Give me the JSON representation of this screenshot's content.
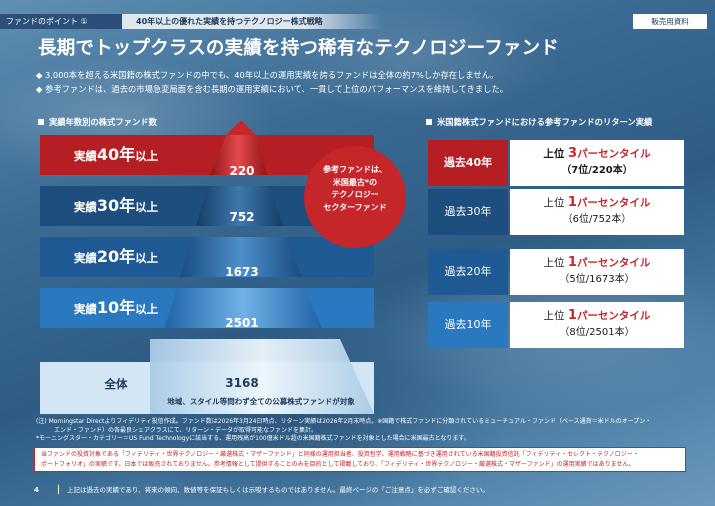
{
  "header": {
    "tag": "ファンドのポイント ①",
    "strategy": "40年以上の優れた実績を持つテクノロジー株式戦略",
    "badge": "販売用資料"
  },
  "title": "長期でトップクラスの実績を持つ稀有なテクノロジーファンド",
  "bullets": [
    "◆ 3,000本を超える米国籍の株式ファンドの中でも、40年以上の運用実績を誇るファンドは全体の約7%しか存在しません。",
    "◆ 参考ファンドは、過去の市場急変局面を含む長期の運用実績において、一貫して上位のパフォーマンスを維持してきました。"
  ],
  "left_section": {
    "heading": "実績年数別の株式ファンド数",
    "rows": [
      {
        "label_pre": "実績",
        "label_big": "40年",
        "label_post": "以上",
        "count": "220",
        "color": "#b51f23"
      },
      {
        "label_pre": "実績",
        "label_big": "30年",
        "label_post": "以上",
        "count": "752",
        "color": "#1e4e7d"
      },
      {
        "label_pre": "実績",
        "label_big": "20年",
        "label_post": "以上",
        "count": "1673",
        "color": "#1f5a95"
      },
      {
        "label_pre": "実績",
        "label_big": "10年",
        "label_post": "以上",
        "count": "2501",
        "color": "#2a78bf"
      }
    ],
    "total": {
      "label": "全体",
      "count": "3168",
      "sub": "地域、スタイル等問わず全ての公募株式ファンドが対象"
    },
    "circle": [
      "参考ファンドは、",
      "米国最古*の",
      "テクノロジー",
      "セクターファンド"
    ]
  },
  "right_section": {
    "heading": "米国籍株式ファンドにおける参考ファンドのリターン実績",
    "rows": [
      {
        "period": "過去40年",
        "prefix": "上位 ",
        "pct_num": "3",
        "pct_text": "パーセンタイル",
        "rank": "（7位/220本）",
        "color": "#b51f23"
      },
      {
        "period": "過去30年",
        "prefix": "上位 ",
        "pct_num": "1",
        "pct_text": "パーセンタイル",
        "rank": "（6位/752本）",
        "color": "#1e4e7d"
      },
      {
        "period": "過去20年",
        "prefix": "上位 ",
        "pct_num": "1",
        "pct_text": "パーセンタイル",
        "rank": "（5位/1673本）",
        "color": "#1f5a95"
      },
      {
        "period": "過去10年",
        "prefix": "上位 ",
        "pct_num": "1",
        "pct_text": "パーセンタイル",
        "rank": "（8位/2501本）",
        "color": "#2a78bf"
      }
    ]
  },
  "notes": [
    "(注) Morningstar Directよりフィデリティ投信作成。ファンド数は2026年3月24日時点、リターン実績は2026年2月末時点。※国籍で株式ファンドに分類されているミューチュアル・ファンド（ベース通貨＝米ドルのオープン・",
    "エンド・ファンド）の各最良シェアクラスにて、リターン・データが取得可能なファンドを集計。",
    "*モーニングスター・カテゴリー＝US Fund Technologyに該当する、運用残高が100億米ドル超の米国籍株式ファンドを対象とした場合に米国最古となります。"
  ],
  "disclaimer": [
    "当ファンドの投資対象である「フィデリティ・世界テクノロジー・厳選株式・マザーファンド」と同様の運用担当者、投資哲学、運用戦略に基づき運用されている米国籍投資信託「フィデリティ・セレクト・テクノロジー・",
    "ポートフォリオ」の実績です。日本では販売されておりません。参考情報として提供することのみを目的として掲載しており、「フィデリティ・世界テクノロジー・厳選株式・マザーファンド」の運用実績ではありません。"
  ],
  "footer": {
    "page": "4",
    "text": "上記は過去の実績であり、将来の傾向、数値等を保証もしくは示唆するものではありません。最終ページの「ご注意点」を必ずご確認ください。"
  }
}
